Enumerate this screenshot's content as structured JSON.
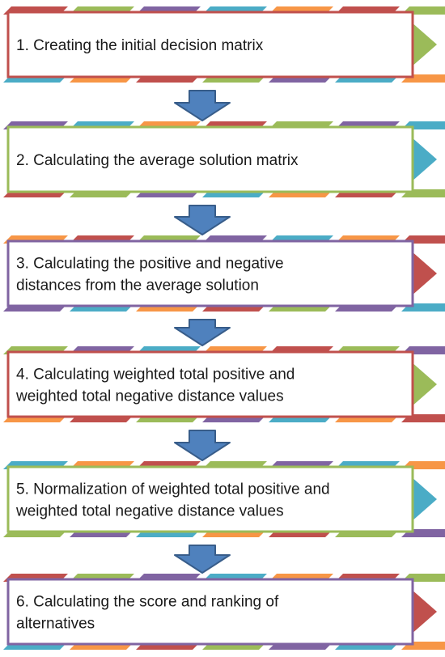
{
  "colors": {
    "red": "#c0504d",
    "green": "#9bbb59",
    "purple": "#8064a2",
    "teal": "#4bacc6",
    "orange": "#f79646",
    "arrow_fill": "#4f81bd",
    "arrow_stroke": "#385d8a",
    "text": "#1a1a1a",
    "box_fill": "#ffffff"
  },
  "stripe_pattern": [
    "red",
    "green",
    "purple",
    "teal",
    "orange"
  ],
  "steps": [
    {
      "lines": [
        "1. Creating the initial decision matrix"
      ],
      "border": "red",
      "tab": "green"
    },
    {
      "lines": [
        "2. Calculating the average solution matrix"
      ],
      "border": "green",
      "tab": "teal"
    },
    {
      "lines": [
        "3. Calculating the positive and negative",
        "distances from the average solution"
      ],
      "border": "purple",
      "tab": "red"
    },
    {
      "lines": [
        "4. Calculating weighted total positive and",
        "weighted total negative distance values"
      ],
      "border": "red",
      "tab": "green"
    },
    {
      "lines": [
        "5. Normalization of weighted total positive and",
        "weighted total negative distance values"
      ],
      "border": "green",
      "tab": "teal"
    },
    {
      "lines": [
        "6. Calculating the score and ranking of",
        "alternatives"
      ],
      "border": "purple",
      "tab": "red"
    }
  ],
  "connectors": [
    {
      "shape": "down-arrow-icon"
    },
    {
      "shape": "down-arrow-icon"
    },
    {
      "shape": "down-arrow-icon"
    },
    {
      "shape": "down-arrow-icon"
    },
    {
      "shape": "down-arrow-icon"
    }
  ]
}
